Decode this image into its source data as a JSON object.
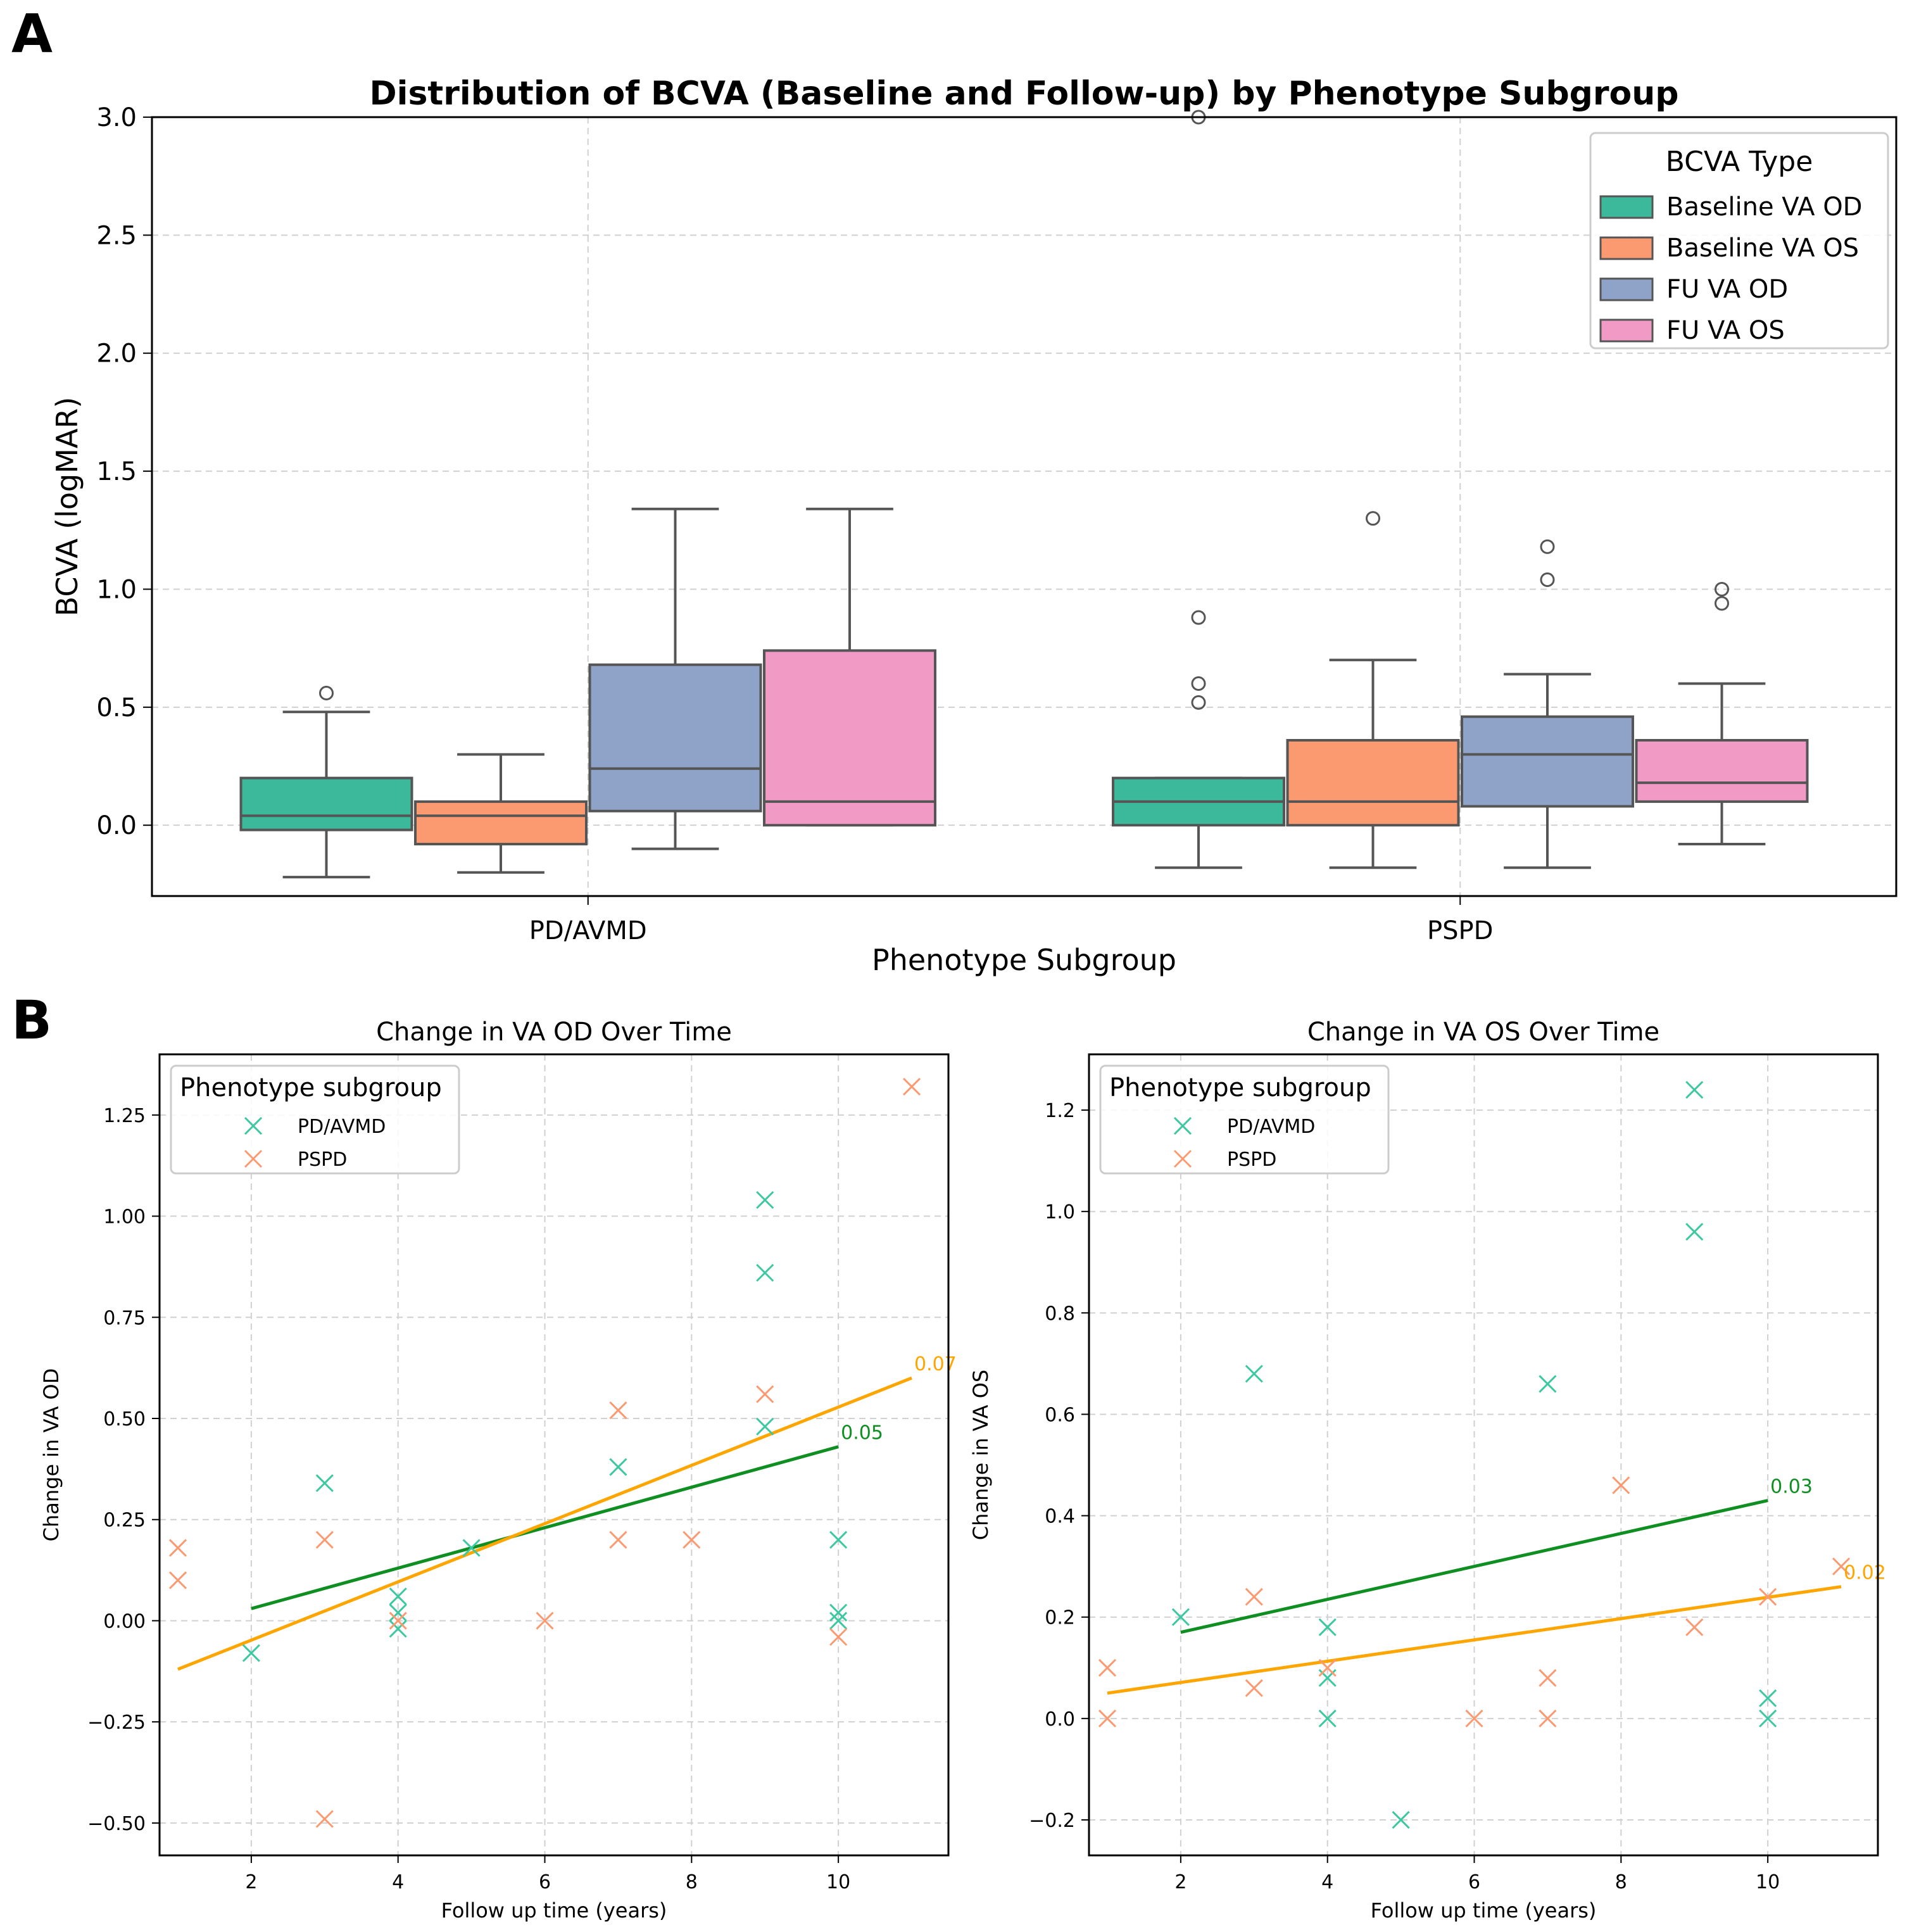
{
  "panel_labels": {
    "a": "A",
    "b": "B"
  },
  "colors": {
    "baseline_od": "#3cb89a",
    "baseline_os": "#fb9a71",
    "fu_od": "#8fa3c8",
    "fu_os": "#f19ac5",
    "box_edge": "#555555",
    "pd_marker": "#3cc8a0",
    "pspd_marker": "#fb9a71",
    "pd_fit": "#0f8f22",
    "pspd_fit": "#ffa500",
    "grid": "#d0d0d0"
  },
  "chart_data": [
    {
      "type": "box",
      "title": "Distribution of BCVA (Baseline and Follow-up) by Phenotype Subgroup",
      "xlabel": "Phenotype Subgroup",
      "ylabel": "BCVA (logMAR)",
      "ylim": [
        -0.3,
        3.0
      ],
      "yticks": [
        "0.0",
        "0.5",
        "1.0",
        "1.5",
        "2.0",
        "2.5",
        "3.0"
      ],
      "grid": true,
      "legend_title": "BCVA Type",
      "legend_position": "top-right",
      "categories": [
        "PD/AVMD",
        "PSPD"
      ],
      "series": [
        {
          "name": "Baseline VA OD",
          "color_key": "baseline_od",
          "boxes": [
            {
              "whisker_low": -0.22,
              "q1": -0.02,
              "median": 0.04,
              "q3": 0.2,
              "whisker_high": 0.48,
              "outliers": [
                0.56
              ]
            },
            {
              "whisker_low": -0.18,
              "q1": 0.0,
              "median": 0.1,
              "q3": 0.2,
              "whisker_high": 0.2,
              "outliers": [
                0.52,
                0.6,
                0.88,
                3.0
              ]
            }
          ]
        },
        {
          "name": "Baseline VA OS",
          "color_key": "baseline_os",
          "boxes": [
            {
              "whisker_low": -0.2,
              "q1": -0.08,
              "median": 0.04,
              "q3": 0.1,
              "whisker_high": 0.3,
              "outliers": []
            },
            {
              "whisker_low": -0.18,
              "q1": 0.0,
              "median": 0.1,
              "q3": 0.36,
              "whisker_high": 0.7,
              "outliers": [
                1.3
              ]
            }
          ]
        },
        {
          "name": "FU VA OD",
          "color_key": "fu_od",
          "boxes": [
            {
              "whisker_low": -0.1,
              "q1": 0.06,
              "median": 0.24,
              "q3": 0.68,
              "whisker_high": 1.34,
              "outliers": []
            },
            {
              "whisker_low": -0.18,
              "q1": 0.08,
              "median": 0.3,
              "q3": 0.46,
              "whisker_high": 0.64,
              "outliers": [
                1.04,
                1.18
              ]
            }
          ]
        },
        {
          "name": "FU VA OS",
          "color_key": "fu_os",
          "boxes": [
            {
              "whisker_low": 0.0,
              "q1": 0.0,
              "median": 0.1,
              "q3": 0.74,
              "whisker_high": 1.34,
              "outliers": []
            },
            {
              "whisker_low": -0.08,
              "q1": 0.1,
              "median": 0.18,
              "q3": 0.36,
              "whisker_high": 0.6,
              "outliers": [
                0.94,
                1.0
              ]
            }
          ]
        }
      ]
    },
    {
      "type": "scatter",
      "title": "Change in VA OD Over Time",
      "xlabel": "Follow up time (years)",
      "ylabel": "Change in VA OD",
      "xlim": [
        0.75,
        11.5
      ],
      "ylim": [
        -0.58,
        1.4
      ],
      "xticks": [
        2,
        4,
        6,
        8,
        10
      ],
      "yticks": [
        "−0.50",
        "−0.25",
        "0.00",
        "0.25",
        "0.50",
        "0.75",
        "1.00",
        "1.25"
      ],
      "grid": true,
      "legend_title": "Phenotype subgroup",
      "legend_position": "top-left",
      "series": [
        {
          "name": "PD/AVMD",
          "color_key": "pd_marker",
          "fit_color_key": "pd_fit",
          "x": [
            2,
            3,
            4,
            4,
            4,
            5,
            7,
            9,
            9,
            9,
            10,
            10,
            10
          ],
          "y": [
            -0.08,
            0.34,
            0.06,
            0.02,
            -0.02,
            0.18,
            0.38,
            1.04,
            0.86,
            0.48,
            0.2,
            0.02,
            0.0
          ],
          "fit": {
            "x": [
              2,
              10
            ],
            "y": [
              0.03,
              0.43
            ],
            "label": "0.05"
          }
        },
        {
          "name": "PSPD",
          "color_key": "pspd_marker",
          "fit_color_key": "pspd_fit",
          "x": [
            1,
            1,
            3,
            3,
            4,
            6,
            7,
            7,
            8,
            9,
            10,
            11
          ],
          "y": [
            0.18,
            0.1,
            0.2,
            -0.49,
            0.0,
            0.0,
            0.52,
            0.2,
            0.2,
            0.56,
            -0.04,
            1.32
          ],
          "fit": {
            "x": [
              1,
              11
            ],
            "y": [
              -0.12,
              0.6
            ],
            "label": "0.07"
          }
        }
      ]
    },
    {
      "type": "scatter",
      "title": "Change in VA OS Over Time",
      "xlabel": "Follow up time (years)",
      "ylabel": "Change in VA OS",
      "xlim": [
        0.75,
        11.5
      ],
      "ylim": [
        -0.27,
        1.31
      ],
      "xticks": [
        2,
        4,
        6,
        8,
        10
      ],
      "yticks": [
        "−0.2",
        "0.0",
        "0.2",
        "0.4",
        "0.6",
        "0.8",
        "1.0",
        "1.2"
      ],
      "grid": true,
      "legend_title": "Phenotype subgroup",
      "legend_position": "top-left",
      "series": [
        {
          "name": "PD/AVMD",
          "color_key": "pd_marker",
          "fit_color_key": "pd_fit",
          "x": [
            2,
            3,
            4,
            4,
            4,
            5,
            7,
            9,
            9,
            10,
            10
          ],
          "y": [
            0.2,
            0.68,
            0.18,
            0.08,
            0.0,
            -0.2,
            0.66,
            1.24,
            0.96,
            0.04,
            0.0
          ],
          "fit": {
            "x": [
              2,
              10
            ],
            "y": [
              0.17,
              0.43
            ],
            "label": "0.03"
          }
        },
        {
          "name": "PSPD",
          "color_key": "pspd_marker",
          "fit_color_key": "pspd_fit",
          "x": [
            1,
            1,
            3,
            3,
            4,
            6,
            7,
            7,
            8,
            9,
            10,
            11
          ],
          "y": [
            0.1,
            0.0,
            0.24,
            0.06,
            0.1,
            0.0,
            0.08,
            0.0,
            0.46,
            0.18,
            0.24,
            0.3
          ],
          "fit": {
            "x": [
              1,
              11
            ],
            "y": [
              0.05,
              0.26
            ],
            "label": "0.02"
          }
        }
      ]
    }
  ]
}
